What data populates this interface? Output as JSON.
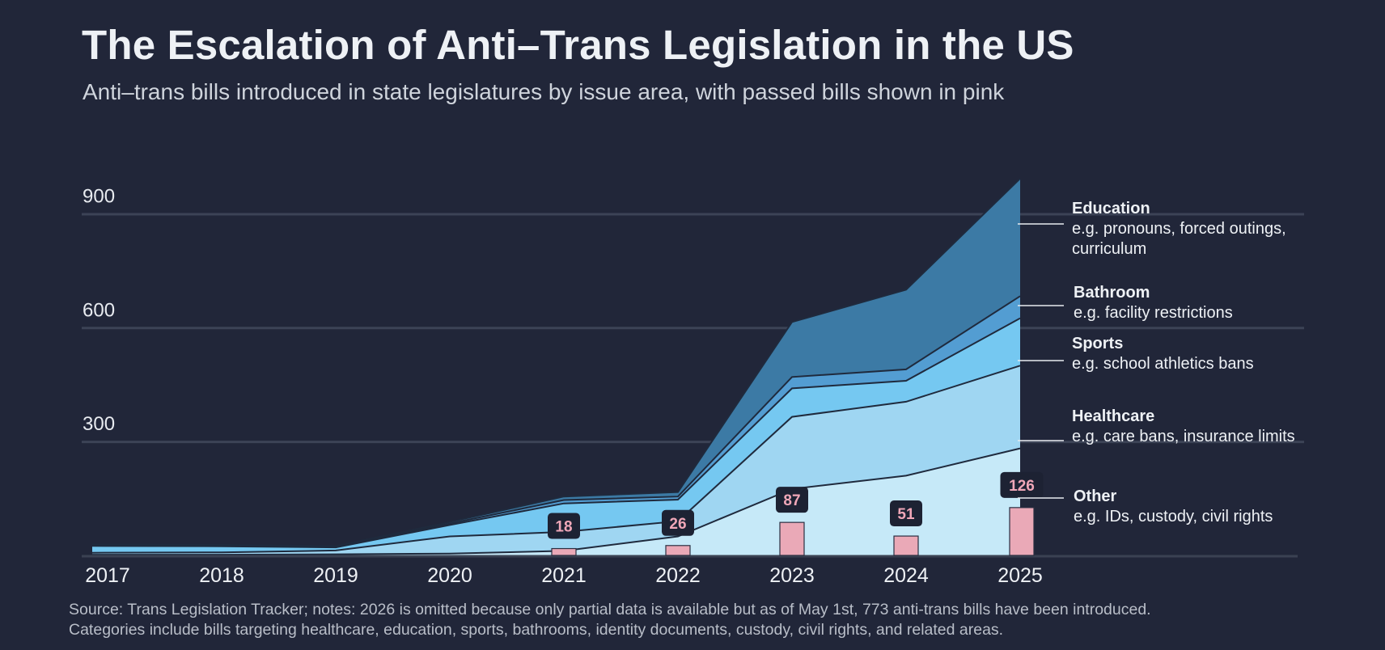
{
  "header": {
    "title": "The Escalation of Anti–Trans Legislation in the US",
    "subtitle": "Anti–trans bills introduced in state legislatures by issue area, with passed bills shown in pink"
  },
  "footer": {
    "line1": "Source: Trans Legislation Tracker; notes: 2026 is omitted because only partial data is available but as of May 1st, 773 anti-trans bills have  been introduced.",
    "line2": "Categories include bills targeting healthcare, education, sports, bathrooms, identity documents,  custody, civil rights, and related areas."
  },
  "colors": {
    "background": "#212639",
    "Other": "#c6e9f8",
    "Healthcare": "#9fd6f2",
    "Sports": "#75c8f1",
    "Bathroom": "#539dd2",
    "Education": "#3c7aa5",
    "passed": "#eaa9b7",
    "passed_text": "#f0a7b8",
    "label_box": "#1d2233",
    "grid": "#3c4356",
    "divider": "#1f2a3d"
  },
  "chart_data": {
    "type": "area",
    "stacked": true,
    "title": "The Escalation of Anti–Trans Legislation in the US",
    "x": [
      "2017",
      "2018",
      "2019",
      "2020",
      "2021",
      "2022",
      "2023",
      "2024",
      "2025"
    ],
    "ylim": [
      0,
      1000
    ],
    "yticks": [
      300,
      600,
      900
    ],
    "grid": true,
    "legend_position": "right",
    "series": [
      {
        "name": "Other",
        "values": [
          2,
          2,
          3,
          5,
          12,
          50,
          175,
          210,
          282
        ]
      },
      {
        "name": "Healthcare",
        "values": [
          5,
          6,
          10,
          45,
          50,
          40,
          190,
          195,
          218
        ]
      },
      {
        "name": "Sports",
        "values": [
          18,
          16,
          8,
          30,
          75,
          57,
          75,
          55,
          125
        ]
      },
      {
        "name": "Bathroom",
        "values": [
          3,
          3,
          3,
          4,
          9,
          8,
          30,
          30,
          58
        ]
      },
      {
        "name": "Education",
        "values": [
          1,
          1,
          1,
          4,
          9,
          12,
          145,
          210,
          310
        ]
      }
    ],
    "passed": {
      "name": "Passed",
      "x": [
        "2021",
        "2022",
        "2023",
        "2024",
        "2025"
      ],
      "values": [
        18,
        26,
        87,
        51,
        126
      ]
    },
    "legend": [
      {
        "name": "Education",
        "desc": "e.g. pronouns, forced outings, curriculum"
      },
      {
        "name": "Bathroom",
        "desc": "e.g. facility restrictions"
      },
      {
        "name": "Sports",
        "desc": "e.g. school athletics bans"
      },
      {
        "name": "Healthcare",
        "desc": "e.g. care bans, insurance limits"
      },
      {
        "name": "Other",
        "desc": "e.g. IDs, custody, civil rights"
      }
    ]
  }
}
